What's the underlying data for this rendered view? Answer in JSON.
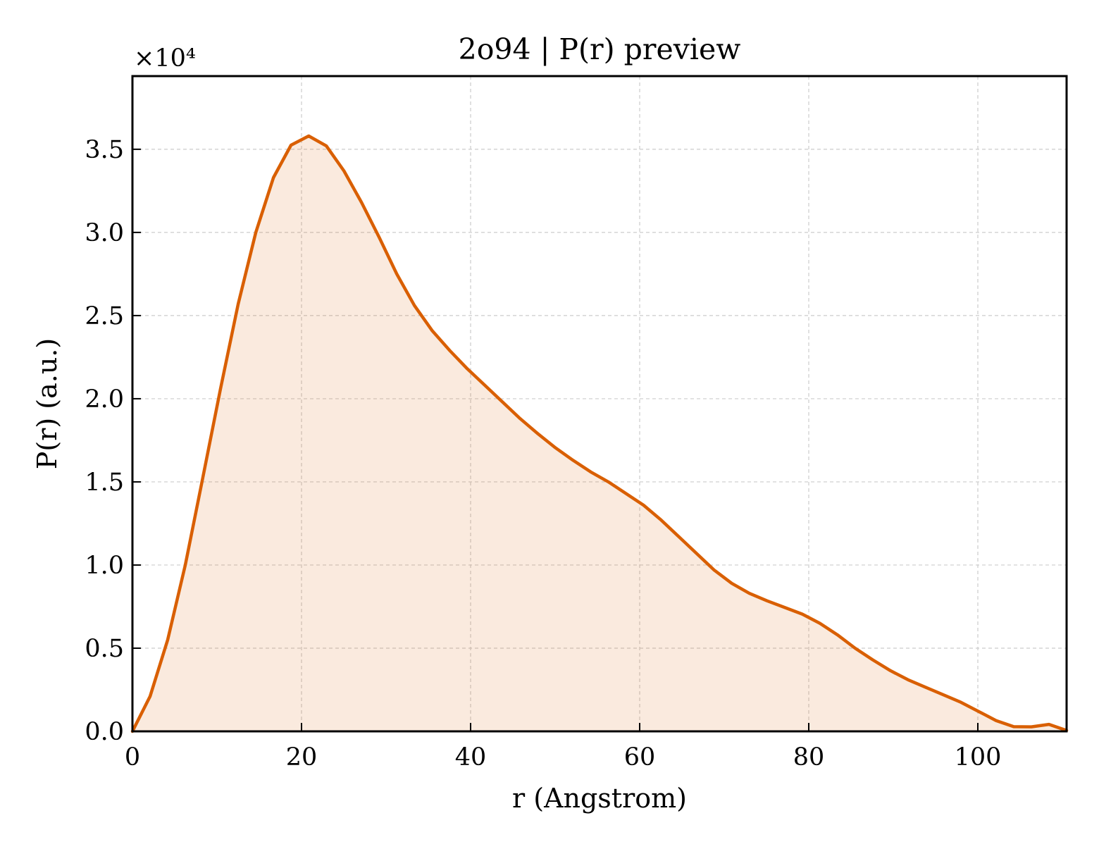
{
  "chart_data": {
    "type": "area",
    "title": "2o94 | P(r) preview",
    "xlabel": "r (Angstrom)",
    "ylabel": "P(r) (a.u.)",
    "y_multiplier_label": "×10⁴",
    "y_scale_factor": 10000,
    "xlim": [
      0,
      110.5
    ],
    "ylim": [
      0,
      39400
    ],
    "x_ticks": [
      0,
      20,
      40,
      60,
      80,
      100
    ],
    "x_tick_labels": [
      "0",
      "20",
      "40",
      "60",
      "80",
      "100"
    ],
    "y_ticks": [
      0,
      5000,
      10000,
      15000,
      20000,
      25000,
      30000,
      35000
    ],
    "y_tick_labels": [
      "0.0",
      "0.5",
      "1.0",
      "1.5",
      "2.0",
      "2.5",
      "3.0",
      "3.5"
    ],
    "grid": true,
    "ticks_direction": "in",
    "colors": {
      "line": "#d95f02",
      "fill": "#d95f02",
      "fill_opacity": 0.13,
      "grid": "#cccccc"
    },
    "series": [
      {
        "x": [
          0,
          2.08,
          4.17,
          6.25,
          8.34,
          10.42,
          12.51,
          14.59,
          16.68,
          18.76,
          20.85,
          22.93,
          25.02,
          27.1,
          29.19,
          31.27,
          33.36,
          35.44,
          37.53,
          39.61,
          41.7,
          43.78,
          45.87,
          47.95,
          50.04,
          52.12,
          54.21,
          56.29,
          58.38,
          60.46,
          62.55,
          64.63,
          66.72,
          68.8,
          70.89,
          72.97,
          75.06,
          77.14,
          79.23,
          81.31,
          83.4,
          85.48,
          87.57,
          89.65,
          91.74,
          93.82,
          95.91,
          97.99,
          100.08,
          102.16,
          104.25,
          106.33,
          108.42,
          110.5
        ],
        "y": [
          0,
          2100,
          5500,
          10000,
          15300,
          20600,
          25700,
          30000,
          33300,
          35250,
          35800,
          35200,
          33700,
          31800,
          29700,
          27500,
          25600,
          24100,
          22900,
          21800,
          20800,
          19800,
          18800,
          17900,
          17050,
          16300,
          15600,
          15000,
          14300,
          13600,
          12700,
          11700,
          10700,
          9700,
          8900,
          8300,
          7850,
          7450,
          7050,
          6500,
          5800,
          5000,
          4300,
          3650,
          3100,
          2650,
          2200,
          1750,
          1200,
          650,
          280,
          270,
          420,
          50
        ]
      }
    ]
  }
}
